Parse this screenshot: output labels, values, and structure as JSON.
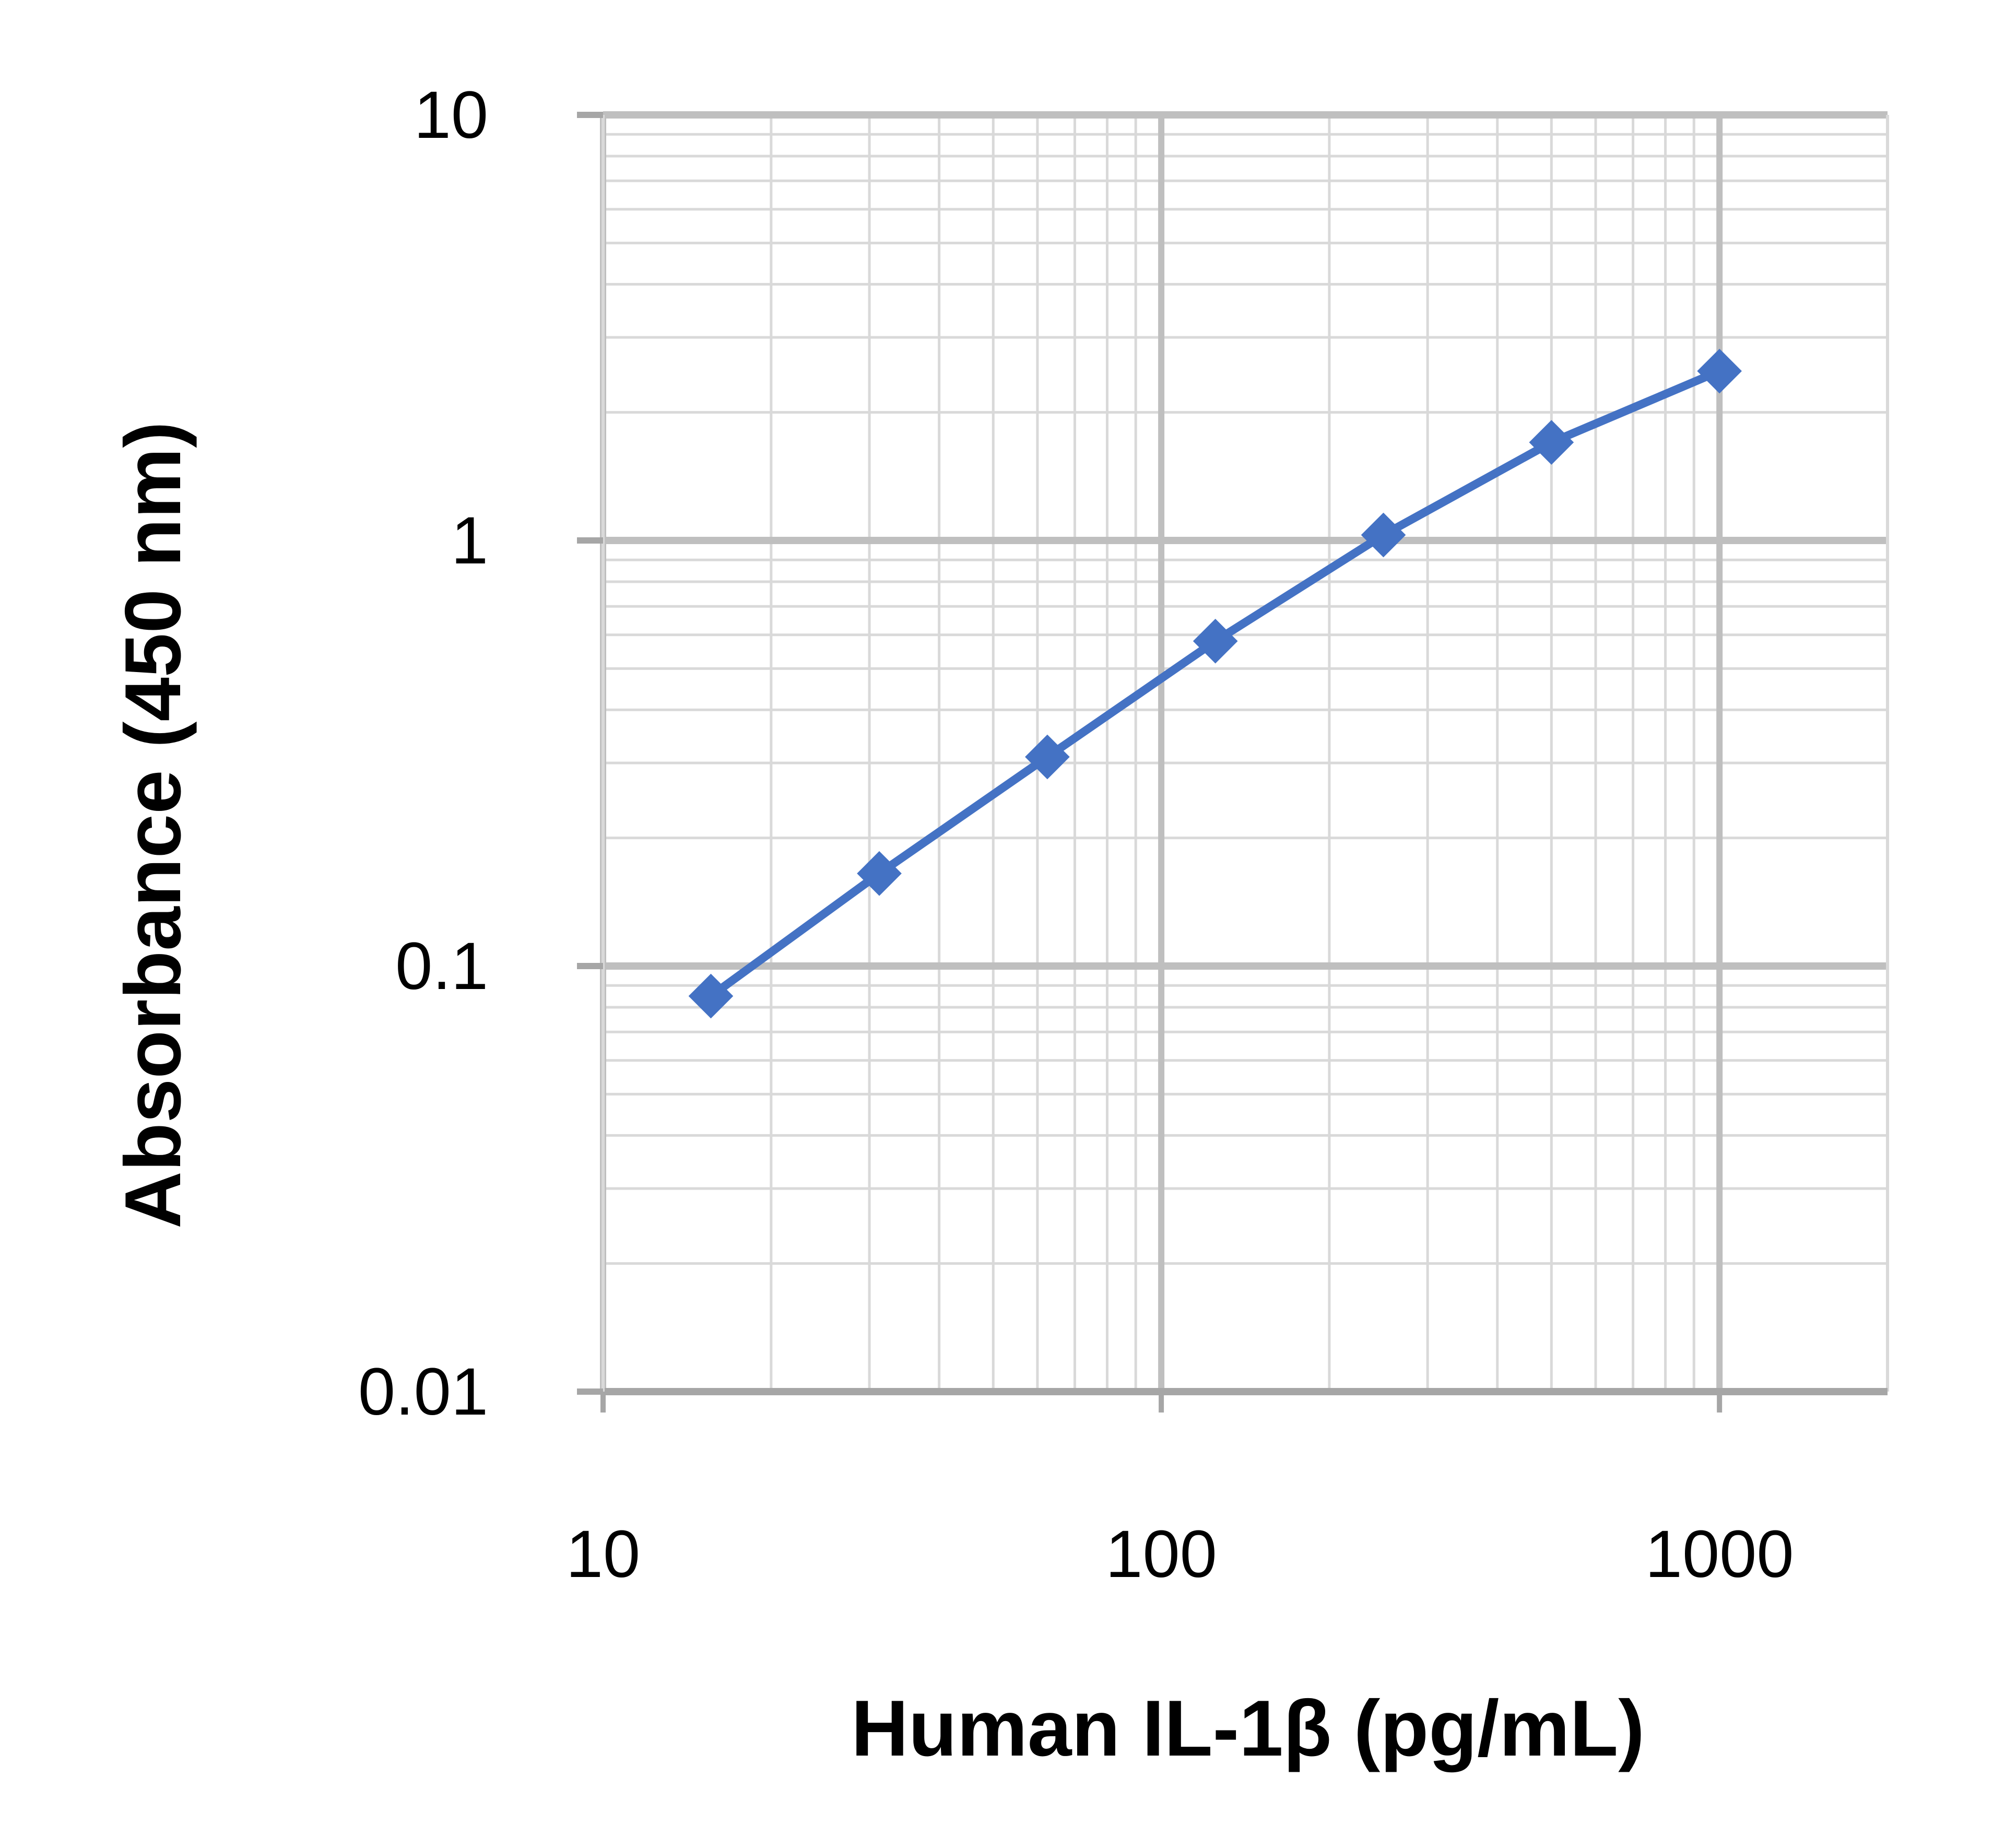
{
  "chart_data": {
    "type": "line",
    "title": "",
    "xlabel": "Human IL-1β (pg/mL)",
    "ylabel": "Absorbance (450 nm)",
    "x_scale": "log",
    "y_scale": "log",
    "xlim": [
      10,
      2000
    ],
    "ylim": [
      0.01,
      10
    ],
    "x_ticks": [
      10,
      100,
      1000
    ],
    "x_tick_labels": [
      "10",
      "100",
      "1000"
    ],
    "y_ticks": [
      0.01,
      0.1,
      1,
      10
    ],
    "y_tick_labels": [
      "0.01",
      "0.1",
      "1",
      "10"
    ],
    "grid": true,
    "legend": "none",
    "series": [
      {
        "marker": "diamond",
        "color": "#4472C4",
        "x": [
          15.6,
          31.25,
          62.5,
          125,
          250,
          500,
          1000
        ],
        "y": [
          0.085,
          0.165,
          0.31,
          0.58,
          1.03,
          1.7,
          2.5
        ]
      }
    ],
    "colors": {
      "major_grid": "#bfbfbf",
      "minor_grid": "#d9d9d9",
      "axis": "#a6a6a6",
      "series": "#4472C4"
    }
  }
}
